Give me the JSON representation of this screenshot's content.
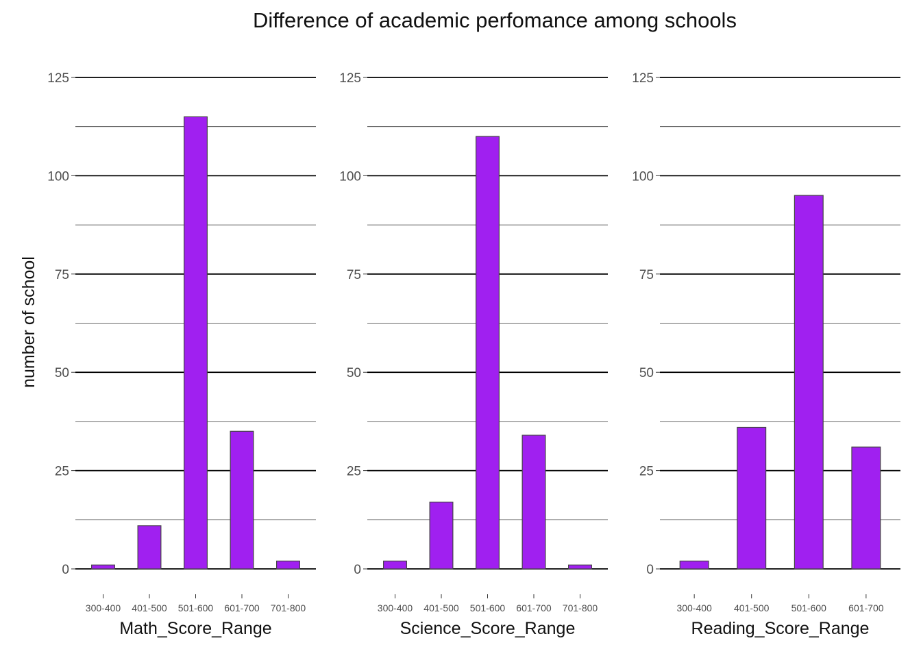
{
  "figure": {
    "title": "Difference of academic perfomance among schools",
    "ylabel": "number of school",
    "bar_color": "#A020F0",
    "bar_border": "#444444"
  },
  "chart_data": [
    {
      "type": "bar",
      "xlabel": "Math_Score_Range",
      "ylabel": "number of school",
      "categories": [
        "300-400",
        "401-500",
        "501-600",
        "601-700",
        "701-800"
      ],
      "values": [
        1,
        11,
        115,
        35,
        2
      ],
      "ylim": [
        0,
        125
      ],
      "yticks": [
        0,
        25,
        50,
        75,
        100,
        125
      ],
      "grid": true
    },
    {
      "type": "bar",
      "xlabel": "Science_Score_Range",
      "ylabel": "number of school",
      "categories": [
        "300-400",
        "401-500",
        "501-600",
        "601-700",
        "701-800"
      ],
      "values": [
        2,
        17,
        110,
        34,
        1
      ],
      "ylim": [
        0,
        125
      ],
      "yticks": [
        0,
        25,
        50,
        75,
        100,
        125
      ],
      "grid": true
    },
    {
      "type": "bar",
      "xlabel": "Reading_Score_Range",
      "ylabel": "number of school",
      "categories": [
        "300-400",
        "401-500",
        "501-600",
        "601-700"
      ],
      "values": [
        2,
        36,
        95,
        31
      ],
      "ylim": [
        0,
        125
      ],
      "yticks": [
        0,
        25,
        50,
        75,
        100,
        125
      ],
      "grid": true
    }
  ]
}
